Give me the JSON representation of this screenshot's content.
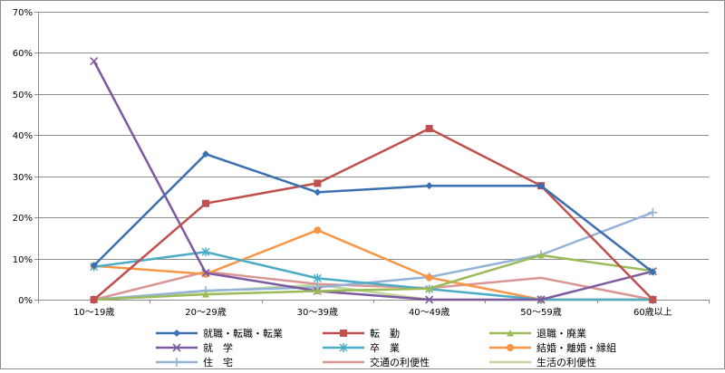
{
  "chart_data": {
    "type": "line",
    "categories": [
      "10～19歳",
      "20～29歳",
      "30～39歳",
      "40～49歳",
      "50～59歳",
      "60歳以上"
    ],
    "ylim": [
      0,
      70
    ],
    "yticks": [
      0,
      10,
      20,
      30,
      40,
      50,
      60,
      70
    ],
    "ytick_labels": [
      "0%",
      "10%",
      "20%",
      "30%",
      "40%",
      "50%",
      "60%",
      "70%"
    ],
    "grid": "horizontal",
    "legend_position": "bottom",
    "series": [
      {
        "name": "就職・転職・転業",
        "color": "#3a6fb0",
        "marker": "diamond",
        "values": [
          8.3,
          35.4,
          26.1,
          27.7,
          27.7,
          6.7
        ]
      },
      {
        "name": "転　勤",
        "color": "#c0504d",
        "marker": "square",
        "values": [
          0,
          23.4,
          28.3,
          41.6,
          27.7,
          0
        ]
      },
      {
        "name": "退職・廃業",
        "color": "#9bbb59",
        "marker": "triangle",
        "values": [
          0,
          1.3,
          2.1,
          2.7,
          10.8,
          7.0
        ]
      },
      {
        "name": "就　学",
        "color": "#7d5aa0",
        "marker": "x",
        "values": [
          58.0,
          6.5,
          2.1,
          0,
          0,
          6.9
        ]
      },
      {
        "name": "卒　業",
        "color": "#4bacc6",
        "marker": "star",
        "values": [
          8.0,
          11.6,
          5.2,
          2.6,
          0,
          0
        ]
      },
      {
        "name": "結婚・離婚・縁組",
        "color": "#f79646",
        "marker": "circle",
        "values": [
          8.2,
          6.2,
          16.9,
          5.4,
          0,
          0
        ]
      },
      {
        "name": "住　宅",
        "color": "#95b3d7",
        "marker": "plus",
        "values": [
          0,
          2.2,
          3.0,
          5.5,
          10.9,
          21.2
        ]
      },
      {
        "name": "交通の利便性",
        "color": "#d99694",
        "marker": "none",
        "values": [
          0,
          6.8,
          3.8,
          2.8,
          5.3,
          0
        ]
      },
      {
        "name": "生活の利便性",
        "color": "#c3d69b",
        "marker": "none",
        "values": [
          0,
          2.0,
          3.6,
          0,
          0,
          0
        ]
      }
    ]
  }
}
